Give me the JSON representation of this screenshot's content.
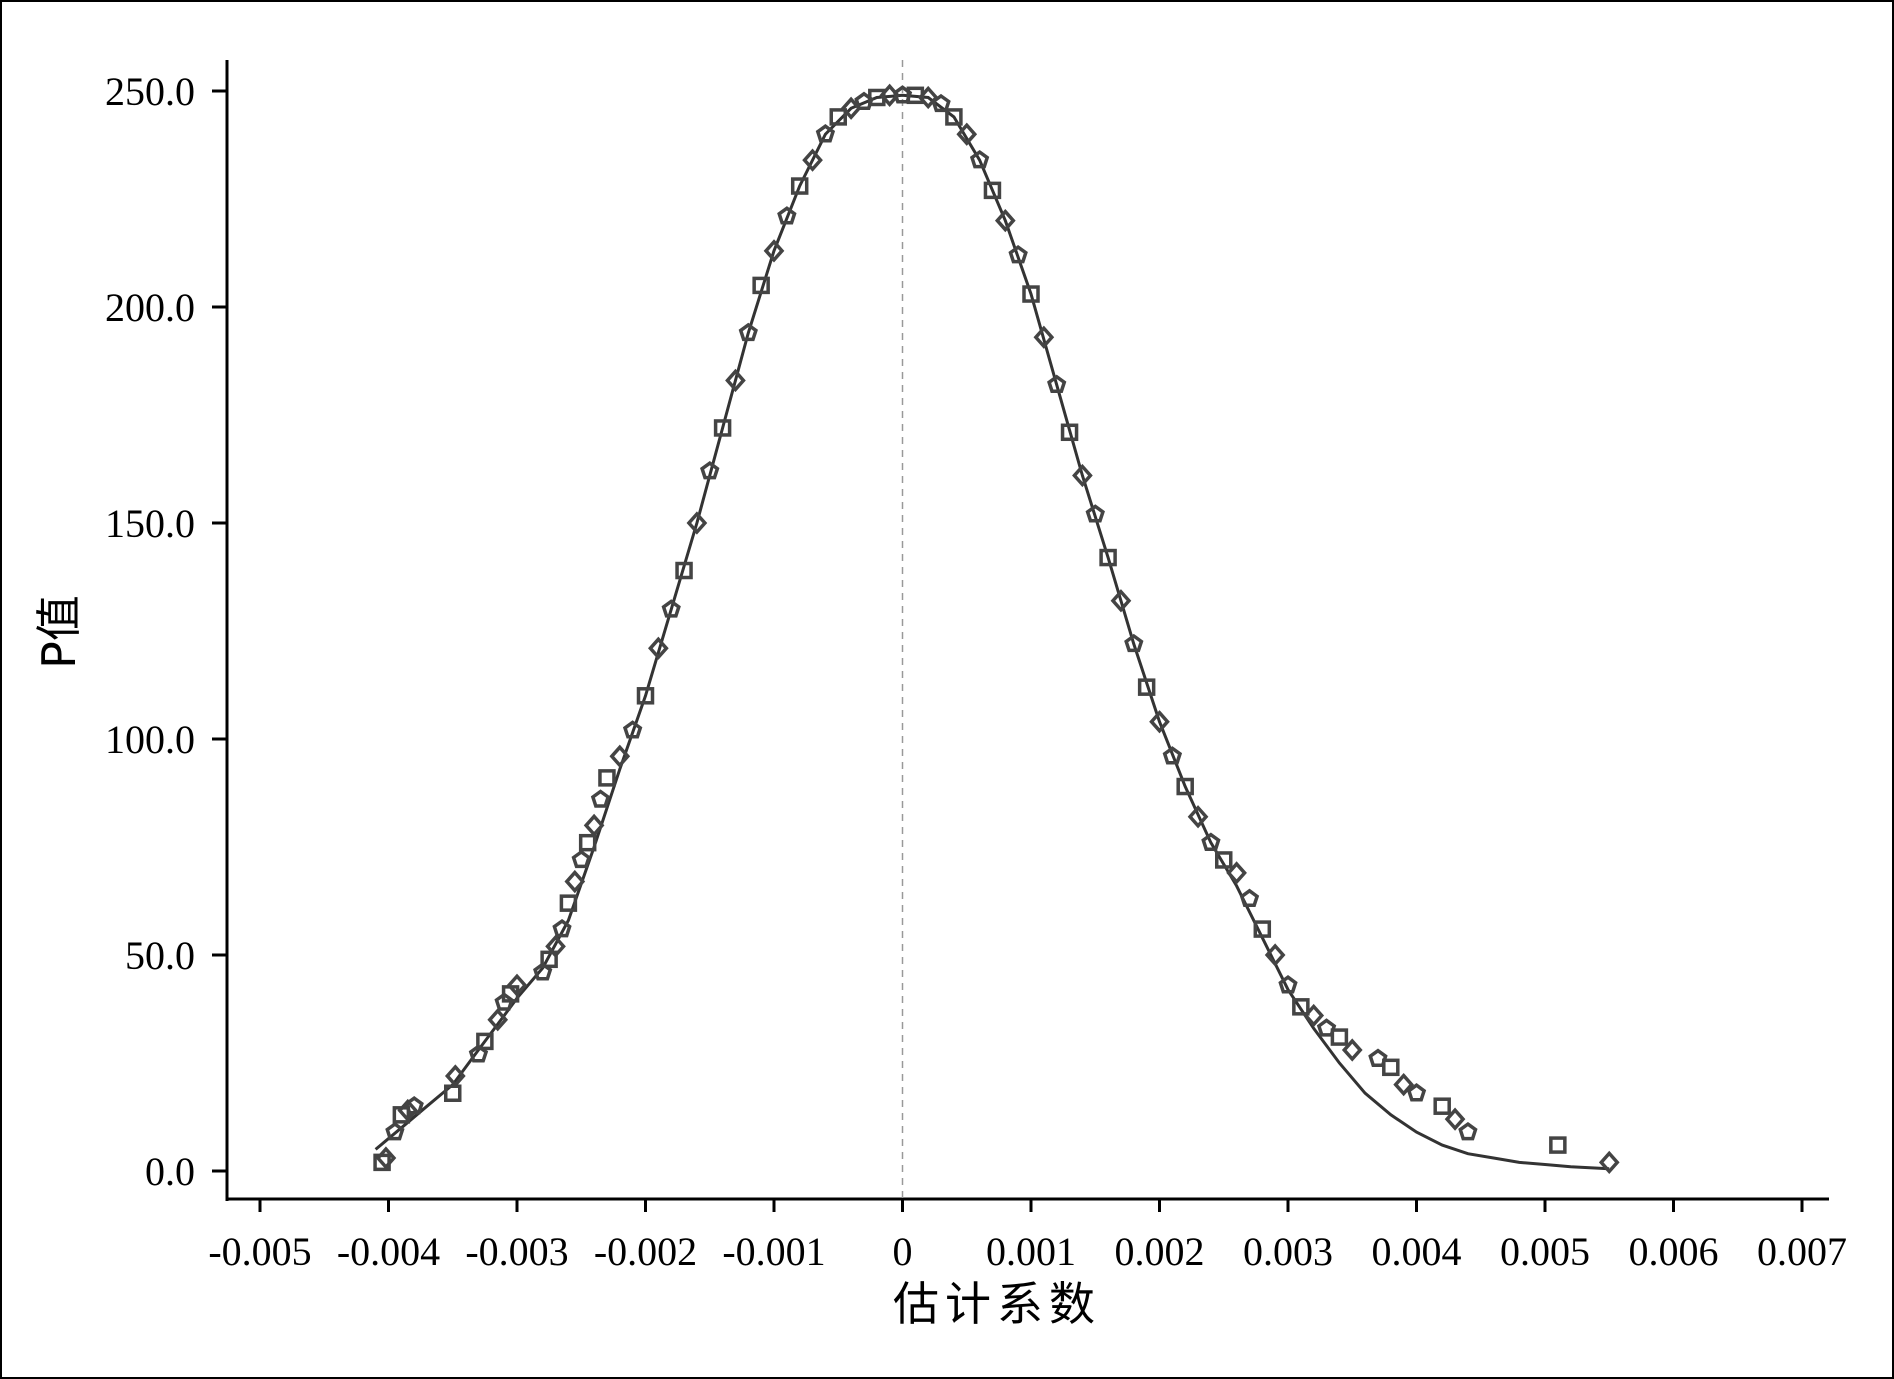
{
  "chart_data": {
    "type": "scatter",
    "title": "",
    "xlabel": "估计系数",
    "ylabel": "P值",
    "xlim": [
      -0.005,
      0.007
    ],
    "ylim": [
      0,
      250
    ],
    "x_ticks": [
      "-0.005",
      "-0.004",
      "-0.003",
      "-0.002",
      "-0.001",
      "0",
      "0.001",
      "0.002",
      "0.003",
      "0.004",
      "0.005",
      "0.006",
      "0.007"
    ],
    "y_ticks": [
      "0.0",
      "50.0",
      "100.0",
      "150.0",
      "200.0",
      "250.0"
    ],
    "reference_line": {
      "x": 0,
      "style": "dashed",
      "color": "#999999"
    },
    "series_color": "#444444",
    "grid": false,
    "legend": "none",
    "series": [
      {
        "marker": "mixed",
        "points": [
          [
            -0.00405,
            2
          ],
          [
            -0.00402,
            3
          ],
          [
            -0.00395,
            9
          ],
          [
            -0.0039,
            13
          ],
          [
            -0.00385,
            14
          ],
          [
            -0.0038,
            15
          ],
          [
            -0.0035,
            18
          ],
          [
            -0.00348,
            22
          ],
          [
            -0.0033,
            27
          ],
          [
            -0.00325,
            30
          ],
          [
            -0.00315,
            35
          ],
          [
            -0.0031,
            39
          ],
          [
            -0.00305,
            41
          ],
          [
            -0.003,
            43
          ],
          [
            -0.0028,
            46
          ],
          [
            -0.00275,
            49
          ],
          [
            -0.0027,
            52
          ],
          [
            -0.00265,
            56
          ],
          [
            -0.0026,
            62
          ],
          [
            -0.00255,
            67
          ],
          [
            -0.0025,
            72
          ],
          [
            -0.00245,
            76
          ],
          [
            -0.0024,
            80
          ],
          [
            -0.00235,
            86
          ],
          [
            -0.0023,
            91
          ],
          [
            -0.0022,
            96
          ],
          [
            -0.0021,
            102
          ],
          [
            -0.002,
            110
          ],
          [
            -0.0019,
            121
          ],
          [
            -0.0018,
            130
          ],
          [
            -0.0017,
            139
          ],
          [
            -0.0016,
            150
          ],
          [
            -0.0015,
            162
          ],
          [
            -0.0014,
            172
          ],
          [
            -0.0013,
            183
          ],
          [
            -0.0012,
            194
          ],
          [
            -0.0011,
            205
          ],
          [
            -0.001,
            213
          ],
          [
            -0.0009,
            221
          ],
          [
            -0.0008,
            228
          ],
          [
            -0.0007,
            234
          ],
          [
            -0.0006,
            240
          ],
          [
            -0.0005,
            244
          ],
          [
            -0.0004,
            246
          ],
          [
            -0.0003,
            247.5
          ],
          [
            -0.0002,
            248.5
          ],
          [
            -0.0001,
            249
          ],
          [
            0,
            249
          ],
          [
            0.0001,
            249
          ],
          [
            0.0002,
            248.5
          ],
          [
            0.0003,
            247
          ],
          [
            0.0004,
            244
          ],
          [
            0.0005,
            240
          ],
          [
            0.0006,
            234
          ],
          [
            0.0007,
            227
          ],
          [
            0.0008,
            220
          ],
          [
            0.0009,
            212
          ],
          [
            0.001,
            203
          ],
          [
            0.0011,
            193
          ],
          [
            0.0012,
            182
          ],
          [
            0.0013,
            171
          ],
          [
            0.0014,
            161
          ],
          [
            0.0015,
            152
          ],
          [
            0.0016,
            142
          ],
          [
            0.0017,
            132
          ],
          [
            0.0018,
            122
          ],
          [
            0.0019,
            112
          ],
          [
            0.002,
            104
          ],
          [
            0.0021,
            96
          ],
          [
            0.0022,
            89
          ],
          [
            0.0023,
            82
          ],
          [
            0.0024,
            76
          ],
          [
            0.0025,
            72
          ],
          [
            0.0026,
            69
          ],
          [
            0.0027,
            63
          ],
          [
            0.0028,
            56
          ],
          [
            0.0029,
            50
          ],
          [
            0.003,
            43
          ],
          [
            0.0031,
            38
          ],
          [
            0.0032,
            36
          ],
          [
            0.0033,
            33
          ],
          [
            0.0034,
            31
          ],
          [
            0.0035,
            28
          ],
          [
            0.0037,
            26
          ],
          [
            0.0038,
            24
          ],
          [
            0.0039,
            20
          ],
          [
            0.004,
            18
          ],
          [
            0.0042,
            15
          ],
          [
            0.0043,
            12
          ],
          [
            0.0044,
            9
          ],
          [
            0.0051,
            6
          ],
          [
            0.0055,
            2
          ]
        ]
      },
      {
        "marker": "line",
        "points": [
          [
            -0.0041,
            5
          ],
          [
            -0.0039,
            10
          ],
          [
            -0.0037,
            15
          ],
          [
            -0.0035,
            20
          ],
          [
            -0.0033,
            28
          ],
          [
            -0.0031,
            36
          ],
          [
            -0.003,
            40
          ],
          [
            -0.0028,
            47
          ],
          [
            -0.0026,
            58
          ],
          [
            -0.0024,
            75
          ],
          [
            -0.0022,
            93
          ],
          [
            -0.002,
            110
          ],
          [
            -0.0018,
            130
          ],
          [
            -0.0016,
            150
          ],
          [
            -0.0014,
            172
          ],
          [
            -0.0012,
            194
          ],
          [
            -0.001,
            213
          ],
          [
            -0.0008,
            228
          ],
          [
            -0.0006,
            240
          ],
          [
            -0.0004,
            246
          ],
          [
            -0.0002,
            248.5
          ],
          [
            0,
            249
          ],
          [
            0.0002,
            248.5
          ],
          [
            0.0004,
            244
          ],
          [
            0.0006,
            234
          ],
          [
            0.0008,
            220
          ],
          [
            0.001,
            203
          ],
          [
            0.0012,
            182
          ],
          [
            0.0014,
            161
          ],
          [
            0.0016,
            142
          ],
          [
            0.0018,
            122
          ],
          [
            0.002,
            104
          ],
          [
            0.0022,
            89
          ],
          [
            0.0024,
            76
          ],
          [
            0.0026,
            66
          ],
          [
            0.0028,
            54
          ],
          [
            0.003,
            42
          ],
          [
            0.0032,
            33
          ],
          [
            0.0034,
            25
          ],
          [
            0.0036,
            18
          ],
          [
            0.0038,
            13
          ],
          [
            0.004,
            9
          ],
          [
            0.0042,
            6
          ],
          [
            0.0044,
            4
          ],
          [
            0.0046,
            3
          ],
          [
            0.0048,
            2
          ],
          [
            0.005,
            1.5
          ],
          [
            0.0052,
            1
          ],
          [
            0.0055,
            0.5
          ]
        ]
      }
    ]
  }
}
